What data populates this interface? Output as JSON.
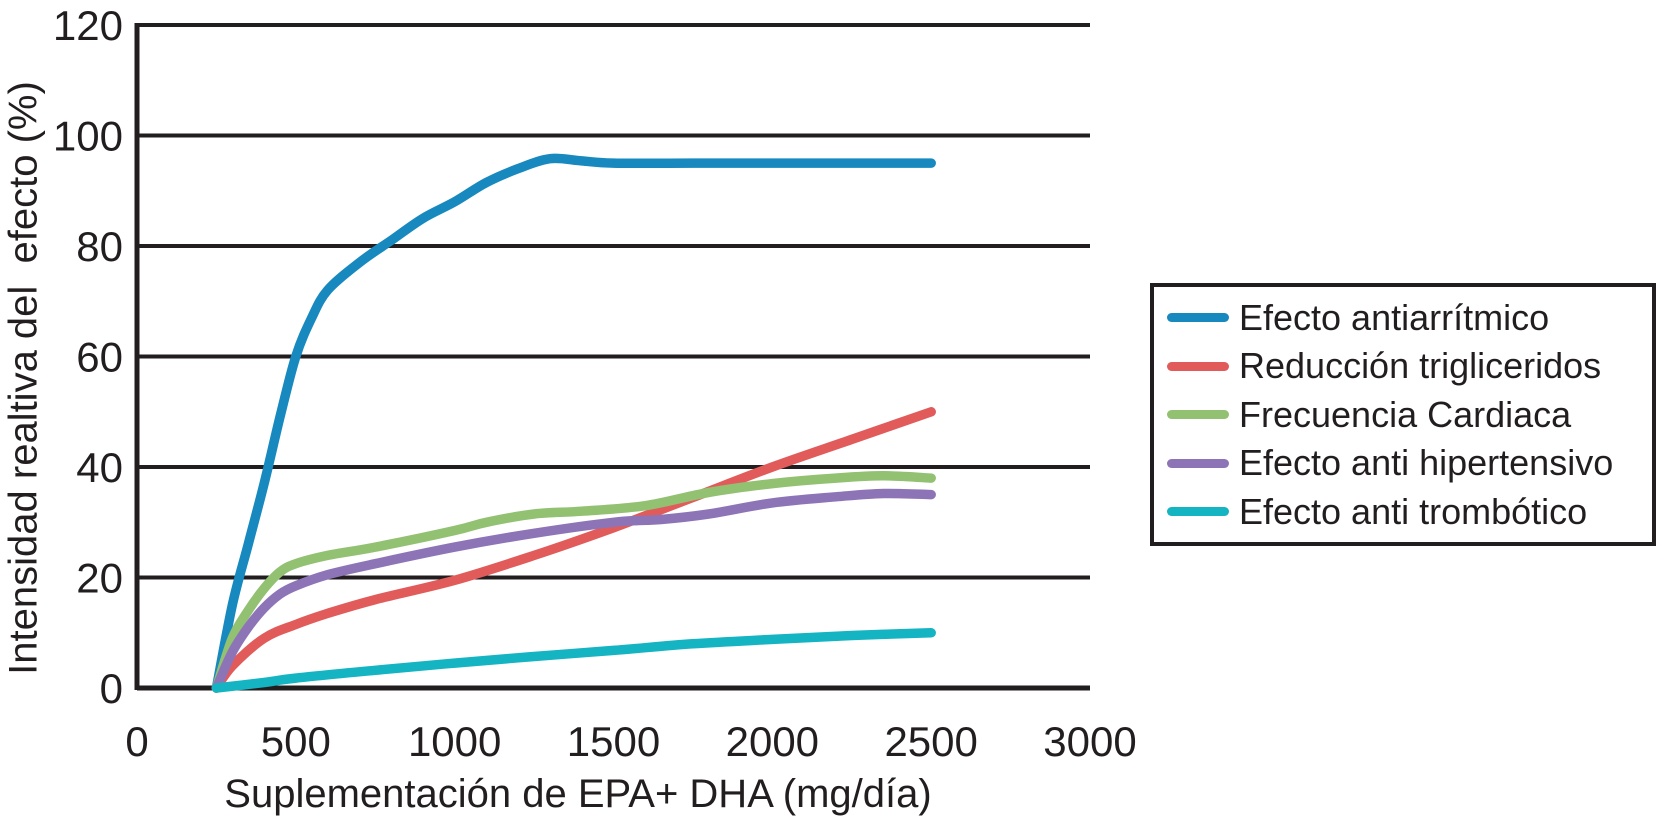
{
  "chart_data": {
    "type": "line",
    "title": "",
    "xlabel": "Suplementación de EPA+ DHA (mg/día)",
    "ylabel": "Intensidad realtiva del  efecto (%)",
    "xlim": [
      0,
      3000
    ],
    "ylim": [
      0,
      120
    ],
    "x_ticks": [
      0,
      500,
      1000,
      1500,
      2000,
      2500,
      3000
    ],
    "y_ticks": [
      0,
      20,
      40,
      60,
      80,
      100,
      120
    ],
    "grid": "horizontal-black",
    "legend_position": "right-outside",
    "axis_color": "#221E1F",
    "background_color": "#ffffff",
    "series": [
      {
        "name": "Efecto antiarrítmico",
        "color": "#1789BF",
        "points": [
          [
            250,
            0
          ],
          [
            300,
            15
          ],
          [
            350,
            26
          ],
          [
            400,
            37
          ],
          [
            450,
            49
          ],
          [
            500,
            60
          ],
          [
            550,
            67
          ],
          [
            600,
            72
          ],
          [
            700,
            77
          ],
          [
            800,
            81
          ],
          [
            900,
            85
          ],
          [
            1000,
            88
          ],
          [
            1100,
            91.5
          ],
          [
            1200,
            94
          ],
          [
            1300,
            95.8
          ],
          [
            1400,
            95.4
          ],
          [
            1500,
            95
          ],
          [
            1750,
            95
          ],
          [
            2000,
            95
          ],
          [
            2250,
            95
          ],
          [
            2500,
            95
          ]
        ]
      },
      {
        "name": "Reducción trigliceridos",
        "color": "#E25B5B",
        "points": [
          [
            250,
            0
          ],
          [
            300,
            4
          ],
          [
            400,
            9
          ],
          [
            500,
            11.5
          ],
          [
            600,
            13.5
          ],
          [
            750,
            16
          ],
          [
            1000,
            19.5
          ],
          [
            1250,
            24
          ],
          [
            1500,
            29
          ],
          [
            1750,
            34.5
          ],
          [
            2000,
            40
          ],
          [
            2250,
            45
          ],
          [
            2500,
            50
          ]
        ]
      },
      {
        "name": "Frecuencia Cardiaca",
        "color": "#93C172",
        "points": [
          [
            250,
            0
          ],
          [
            300,
            9
          ],
          [
            350,
            14
          ],
          [
            400,
            18
          ],
          [
            450,
            21
          ],
          [
            500,
            22.5
          ],
          [
            600,
            24
          ],
          [
            750,
            25.5
          ],
          [
            1000,
            28.5
          ],
          [
            1100,
            30
          ],
          [
            1250,
            31.5
          ],
          [
            1400,
            32
          ],
          [
            1600,
            33
          ],
          [
            1800,
            35.4
          ],
          [
            2000,
            37
          ],
          [
            2200,
            38
          ],
          [
            2350,
            38.4
          ],
          [
            2500,
            38
          ]
        ]
      },
      {
        "name": "Efecto anti hipertensivo",
        "color": "#8D74B7",
        "points": [
          [
            250,
            0
          ],
          [
            300,
            6.5
          ],
          [
            350,
            11
          ],
          [
            400,
            14.5
          ],
          [
            450,
            17
          ],
          [
            500,
            18.5
          ],
          [
            600,
            20.5
          ],
          [
            750,
            22.5
          ],
          [
            1000,
            25.5
          ],
          [
            1250,
            28
          ],
          [
            1500,
            30
          ],
          [
            1650,
            30.5
          ],
          [
            1800,
            31.5
          ],
          [
            2000,
            33.5
          ],
          [
            2200,
            34.6
          ],
          [
            2350,
            35.2
          ],
          [
            2500,
            35
          ]
        ]
      },
      {
        "name": "Efecto anti trombótico",
        "color": "#14B4C2",
        "points": [
          [
            250,
            0
          ],
          [
            400,
            1
          ],
          [
            500,
            1.8
          ],
          [
            750,
            3.2
          ],
          [
            1000,
            4.5
          ],
          [
            1250,
            5.7
          ],
          [
            1500,
            6.8
          ],
          [
            1750,
            8
          ],
          [
            2000,
            8.8
          ],
          [
            2250,
            9.5
          ],
          [
            2500,
            10
          ]
        ]
      }
    ]
  }
}
